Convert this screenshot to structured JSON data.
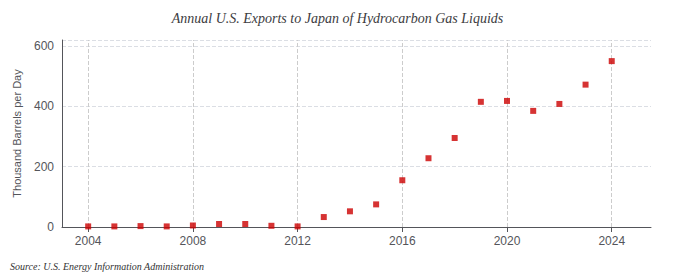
{
  "chart_data": {
    "type": "scatter",
    "title": "Annual U.S. Exports to Japan of Hydrocarbon Gas Liquids",
    "ylabel": "Thousand Barrels per Day",
    "annotations": [
      "Source: U.S. Energy Information Administration"
    ],
    "x": [
      2004,
      2005,
      2006,
      2007,
      2008,
      2009,
      2010,
      2011,
      2012,
      2013,
      2014,
      2015,
      2016,
      2017,
      2018,
      2019,
      2020,
      2021,
      2022,
      2023,
      2024
    ],
    "values": [
      2,
      2,
      3,
      2,
      5,
      10,
      10,
      4,
      2,
      33,
      52,
      75,
      155,
      228,
      295,
      415,
      418,
      385,
      408,
      472,
      550
    ],
    "color": "#cc0000",
    "marker": "square",
    "xlim": [
      2003,
      2025.5
    ],
    "xticks": [
      2004,
      2008,
      2012,
      2016,
      2020,
      2024
    ],
    "ylim": [
      0,
      620
    ],
    "yticks": [
      0,
      200,
      400,
      600
    ],
    "grid": true
  }
}
